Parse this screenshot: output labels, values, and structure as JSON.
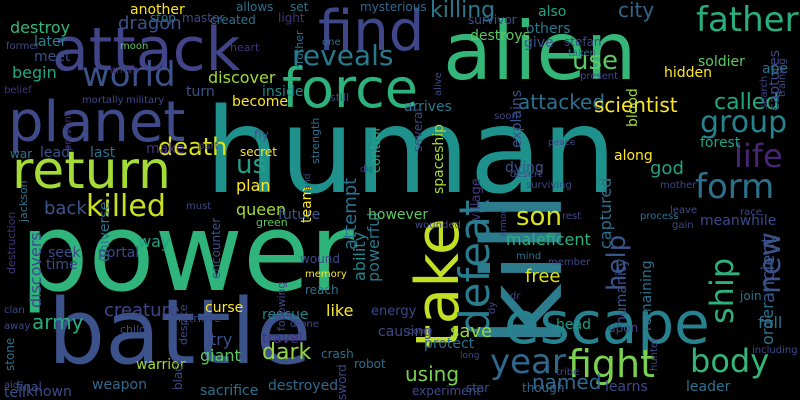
{
  "words": [
    {
      "text": "human",
      "color": "#1f918d"
    },
    {
      "text": "power",
      "color": "#2fb47c"
    },
    {
      "text": "kill",
      "color": "#2c7c8e"
    },
    {
      "text": "alien",
      "color": "#34b679"
    },
    {
      "text": "battle",
      "color": "#3b528b"
    },
    {
      "text": "attack",
      "color": "#414487"
    },
    {
      "text": "escape",
      "color": "#26828e"
    },
    {
      "text": "planet",
      "color": "#3e4a89"
    },
    {
      "text": "return",
      "color": "#a5db36"
    },
    {
      "text": "find",
      "color": "#3f4788"
    },
    {
      "text": "force",
      "color": "#2db27d"
    },
    {
      "text": "take",
      "color": "#c2df23"
    },
    {
      "text": "fight",
      "color": "#7ad151"
    },
    {
      "text": "defeat",
      "color": "#297b8e"
    },
    {
      "text": "father",
      "color": "#28ae80"
    },
    {
      "text": "world",
      "color": "#3b528b"
    },
    {
      "text": "reveals",
      "color": "#2a788e"
    },
    {
      "text": "group",
      "color": "#26828e"
    },
    {
      "text": "year",
      "color": "#31688e"
    },
    {
      "text": "body",
      "color": "#35b779"
    },
    {
      "text": "life",
      "color": "#482475"
    },
    {
      "text": "form",
      "color": "#2c728e"
    },
    {
      "text": "killed",
      "color": "#c8e020"
    },
    {
      "text": "use",
      "color": "#5ec962"
    },
    {
      "text": "son",
      "color": "#d8e219"
    },
    {
      "text": "death",
      "color": "#dde318"
    },
    {
      "text": "ship",
      "color": "#2db27d"
    },
    {
      "text": "new",
      "color": "#3b528b"
    },
    {
      "text": "help",
      "color": "#39568c"
    },
    {
      "text": "us",
      "color": "#1fa088"
    },
    {
      "text": "killing",
      "color": "#2a788e"
    },
    {
      "text": "city",
      "color": "#31688e"
    },
    {
      "text": "called",
      "color": "#22a785"
    },
    {
      "text": "attacked",
      "color": "#2d708e"
    },
    {
      "text": "scientist",
      "color": "#fde725"
    },
    {
      "text": "army",
      "color": "#27ad81"
    },
    {
      "text": "creature",
      "color": "#3f4788"
    },
    {
      "text": "dark",
      "color": "#95d840"
    },
    {
      "text": "named",
      "color": "#31688e"
    },
    {
      "text": "using",
      "color": "#7ad151"
    },
    {
      "text": "save",
      "color": "#98d83e"
    },
    {
      "text": "free",
      "color": "#dde318"
    },
    {
      "text": "destroy",
      "color": "#35b779"
    },
    {
      "text": "discovers",
      "color": "#3e4989"
    },
    {
      "text": "back",
      "color": "#3a548c"
    },
    {
      "text": "begin",
      "color": "#22a785"
    },
    {
      "text": "attempt",
      "color": "#2d708e"
    },
    {
      "text": "ability",
      "color": "#24868e"
    },
    {
      "text": "captured",
      "color": "#2c728e"
    },
    {
      "text": "god",
      "color": "#20a386"
    },
    {
      "text": "ancient",
      "color": "#3b528b"
    },
    {
      "text": "order",
      "color": "#2c728e"
    },
    {
      "text": "forest",
      "color": "#20a386"
    },
    {
      "text": "captures",
      "color": "#3e4989"
    },
    {
      "text": "dragon",
      "color": "#3b528b"
    },
    {
      "text": "discover",
      "color": "#a0da39"
    },
    {
      "text": "turn",
      "color": "#3b528b"
    },
    {
      "text": "inside",
      "color": "#23898e"
    },
    {
      "text": "become",
      "color": "#fde725"
    },
    {
      "text": "plan",
      "color": "#fde725"
    },
    {
      "text": "queen",
      "color": "#a5db36"
    },
    {
      "text": "future",
      "color": "#375a8c"
    },
    {
      "text": "team",
      "color": "#fde725"
    },
    {
      "text": "powerful",
      "color": "#2a788e"
    },
    {
      "text": "spaceship",
      "color": "#a8db34"
    },
    {
      "text": "control",
      "color": "#22a785"
    },
    {
      "text": "village",
      "color": "#453882"
    },
    {
      "text": "dying",
      "color": "#3b528b"
    },
    {
      "text": "along",
      "color": "#fde725"
    },
    {
      "text": "universe",
      "color": "#2c728e"
    },
    {
      "text": "way",
      "color": "#20a486"
    },
    {
      "text": "time",
      "color": "#3e4a89"
    },
    {
      "text": "curse",
      "color": "#fde725"
    },
    {
      "text": "try",
      "color": "#3b528b"
    },
    {
      "text": "giant",
      "color": "#5ec962"
    },
    {
      "text": "travel",
      "color": "#46327e"
    },
    {
      "text": "rescue",
      "color": "#26828e"
    },
    {
      "text": "like",
      "color": "#fde725"
    },
    {
      "text": "energy",
      "color": "#3e4989"
    },
    {
      "text": "protect",
      "color": "#2d708e"
    },
    {
      "text": "causing",
      "color": "#3e4989"
    },
    {
      "text": "humanity",
      "color": "#3b528b"
    },
    {
      "text": "remaining",
      "color": "#2c728e"
    },
    {
      "text": "head",
      "color": "#1f9e89"
    },
    {
      "text": "join",
      "color": "#2c728e"
    },
    {
      "text": "maleficent",
      "color": "#2db27d"
    },
    {
      "text": "however",
      "color": "#5ec962"
    },
    {
      "text": "leader",
      "color": "#2c728e"
    },
    {
      "text": "learns",
      "color": "#3e4989"
    },
    {
      "text": "fall",
      "color": "#2c728e"
    },
    {
      "text": "meanwhile",
      "color": "#3e4989"
    },
    {
      "text": "also",
      "color": "#20a486"
    },
    {
      "text": "others",
      "color": "#2a788e"
    },
    {
      "text": "give",
      "color": "#3b528b"
    },
    {
      "text": "explains",
      "color": "#3b528b"
    },
    {
      "text": "arrives",
      "color": "#2a788e"
    },
    {
      "text": "blood",
      "color": "#a0da39"
    },
    {
      "text": "destroys",
      "color": "#5ec962"
    },
    {
      "text": "another",
      "color": "#fde725"
    },
    {
      "text": "later",
      "color": "#26828e"
    },
    {
      "text": "meet",
      "color": "#3b528b"
    },
    {
      "text": "lead",
      "color": "#3b528b"
    },
    {
      "text": "last",
      "color": "#2c728e"
    },
    {
      "text": "make",
      "color": "#46327e"
    },
    {
      "text": "sacrifice",
      "color": "#2c728e"
    },
    {
      "text": "warrior",
      "color": "#a0da39"
    },
    {
      "text": "weapon",
      "color": "#31688e"
    },
    {
      "text": "known",
      "color": "#3e4989"
    },
    {
      "text": "tell",
      "color": "#3b528b"
    },
    {
      "text": "destroyed",
      "color": "#31688e"
    },
    {
      "text": "seek",
      "color": "#3e4989"
    },
    {
      "text": "portal",
      "color": "#3e4989"
    },
    {
      "text": "stone",
      "color": "#2c728e"
    },
    {
      "text": "final",
      "color": "#3b528b"
    },
    {
      "text": "secret",
      "color": "#fde725"
    },
    {
      "text": "fly",
      "color": "#3b528b"
    },
    {
      "text": "robot",
      "color": "#2d708e"
    },
    {
      "text": "crash",
      "color": "#2c728e"
    },
    {
      "text": "sword",
      "color": "#3e4989"
    },
    {
      "text": "experiment",
      "color": "#3e4989"
    },
    {
      "text": "star",
      "color": "#3b528b"
    },
    {
      "text": "though",
      "color": "#31688e"
    },
    {
      "text": "upon",
      "color": "#3e4989"
    },
    {
      "text": "ape",
      "color": "#2c728e"
    },
    {
      "text": "soldier",
      "color": "#5ec962"
    },
    {
      "text": "hidden",
      "color": "#fde725"
    },
    {
      "text": "mysterious",
      "color": "#31688e"
    },
    {
      "text": "allows",
      "color": "#2d708e"
    },
    {
      "text": "set",
      "color": "#2c728e"
    },
    {
      "text": "light",
      "color": "#46327e"
    },
    {
      "text": "stop",
      "color": "#2c728e"
    },
    {
      "text": "master",
      "color": "#3e4989"
    },
    {
      "text": "created",
      "color": "#2c728e"
    },
    {
      "text": "survivor",
      "color": "#3b528b"
    },
    {
      "text": "stefan",
      "color": "#3e4989"
    },
    {
      "text": "taken",
      "color": "#2c728e"
    },
    {
      "text": "heart",
      "color": "#46327e"
    },
    {
      "text": "brother",
      "color": "#2c728e"
    },
    {
      "text": "one",
      "color": "#2c728e"
    },
    {
      "text": "moon",
      "color": "#5ec962"
    },
    {
      "text": "arrive",
      "color": "#46327e"
    },
    {
      "text": "belief",
      "color": "#46327e"
    },
    {
      "text": "mortally",
      "color": "#3e4989"
    },
    {
      "text": "military",
      "color": "#3e4989"
    },
    {
      "text": "war",
      "color": "#2c728e"
    },
    {
      "text": "part",
      "color": "#3e4989"
    },
    {
      "text": "strength",
      "color": "#2c728e"
    },
    {
      "text": "destruction",
      "color": "#46327e"
    },
    {
      "text": "jackson",
      "color": "#2c728e"
    },
    {
      "text": "green",
      "color": "#5ec962"
    },
    {
      "text": "must",
      "color": "#3e4989"
    },
    {
      "text": "encounter",
      "color": "#3b528b"
    },
    {
      "text": "wound",
      "color": "#3e4989"
    },
    {
      "text": "memory",
      "color": "#fde725"
    },
    {
      "text": "reach",
      "color": "#2c728e"
    },
    {
      "text": "following",
      "color": "#3e4989"
    },
    {
      "text": "despite",
      "color": "#3e4989"
    },
    {
      "text": "retrieve",
      "color": "#3e4989"
    },
    {
      "text": "black",
      "color": "#3e4989"
    },
    {
      "text": "child",
      "color": "#3e4989"
    },
    {
      "text": "clan",
      "color": "#3e4989"
    },
    {
      "text": "away",
      "color": "#3e4989"
    },
    {
      "text": "aid",
      "color": "#3e4989"
    },
    {
      "text": "mind",
      "color": "#2c728e"
    },
    {
      "text": "member",
      "color": "#3e4989"
    },
    {
      "text": "wounded",
      "color": "#3e4989"
    },
    {
      "text": "rest",
      "color": "#3e4989"
    },
    {
      "text": "dr",
      "color": "#3e4989"
    },
    {
      "text": "dy",
      "color": "#3e4989"
    },
    {
      "text": "tribe",
      "color": "#3e4989"
    },
    {
      "text": "surviving",
      "color": "#3e4989"
    },
    {
      "text": "desert",
      "color": "#3e4989"
    },
    {
      "text": "peace",
      "color": "#3e4989"
    },
    {
      "text": "soon",
      "color": "#3e4989"
    },
    {
      "text": "still",
      "color": "#3e4989"
    },
    {
      "text": "several",
      "color": "#3e4989"
    },
    {
      "text": "present",
      "color": "#3e4989"
    },
    {
      "text": "alive",
      "color": "#3e4989"
    },
    {
      "text": "process",
      "color": "#2c728e"
    },
    {
      "text": "gain",
      "color": "#3e4989"
    },
    {
      "text": "leave",
      "color": "#3e4989"
    },
    {
      "text": "race",
      "color": "#3e4989"
    },
    {
      "text": "including",
      "color": "#3e4989"
    },
    {
      "text": "hunter",
      "color": "#3e4989"
    },
    {
      "text": "mother",
      "color": "#3e4989"
    },
    {
      "text": "search",
      "color": "#3e4989"
    },
    {
      "text": "training",
      "color": "#3e4989"
    },
    {
      "text": "former",
      "color": "#3e4989"
    },
    {
      "text": "prevent",
      "color": "#46327e"
    },
    {
      "text": "die",
      "color": "#3e4989"
    },
    {
      "text": "land",
      "color": "#3e4989"
    },
    {
      "text": "drone",
      "color": "#3e4989"
    },
    {
      "text": "armor",
      "color": "#3e4989"
    },
    {
      "text": "come",
      "color": "#3e4989"
    },
    {
      "text": "long",
      "color": "#3e4989"
    }
  ]
}
